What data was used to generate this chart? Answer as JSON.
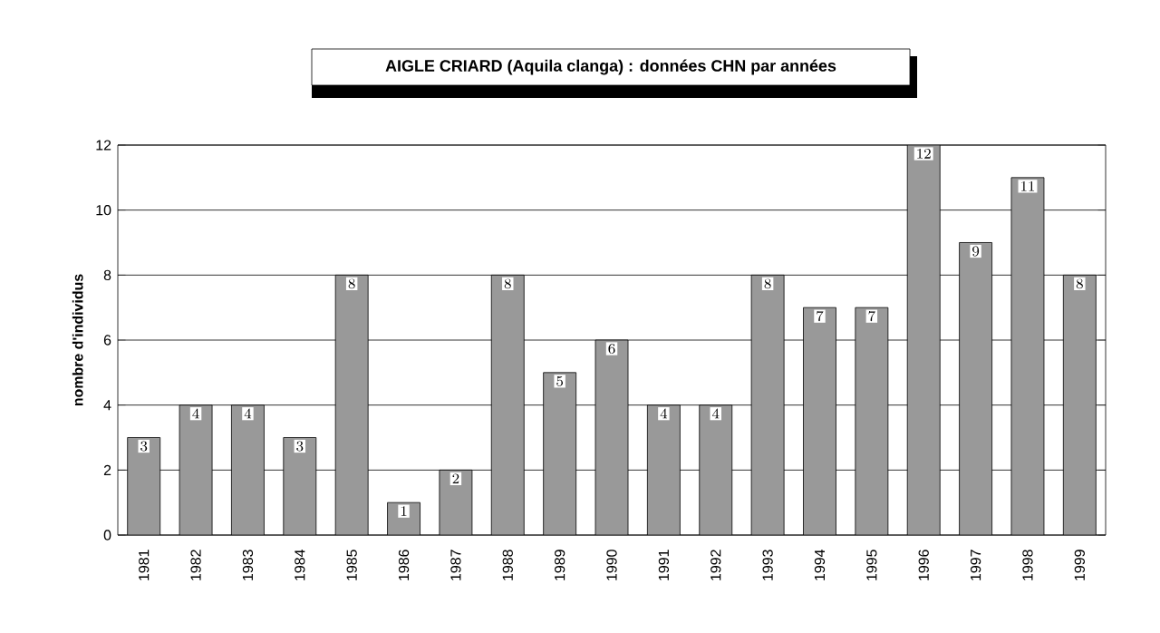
{
  "chart_data": {
    "type": "bar",
    "title": "AIGLE CRIARD (Aquila clanga) : données CHN par années",
    "ylabel": "nombre d'individus",
    "categories": [
      "1981",
      "1982",
      "1983",
      "1984",
      "1985",
      "1986",
      "1987",
      "1988",
      "1989",
      "1990",
      "1991",
      "1992",
      "1993",
      "1994",
      "1995",
      "1996",
      "1997",
      "1998",
      "1999"
    ],
    "values": [
      3,
      4,
      4,
      3,
      8,
      1,
      2,
      8,
      5,
      6,
      4,
      4,
      8,
      7,
      7,
      12,
      9,
      11,
      8
    ],
    "color": "#999999",
    "ylim": [
      0,
      12
    ],
    "yticks": [
      0,
      2,
      4,
      6,
      8,
      10,
      12
    ],
    "grid": "y",
    "data_labels": true
  }
}
